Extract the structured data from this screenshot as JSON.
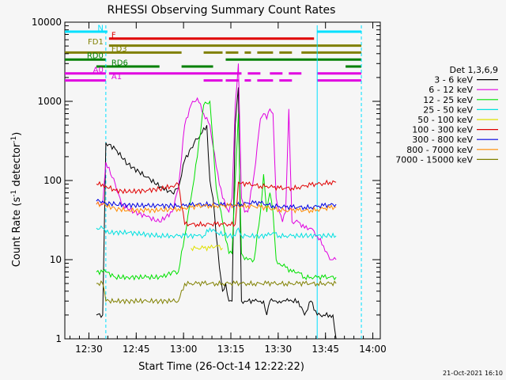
{
  "chart_data": {
    "type": "line",
    "title": "RHESSI Observing Summary Count Rates",
    "xlabel": "Start Time (26-Oct-14 12:22:22)",
    "ylabel": "Count Rate (s⁻¹ detector⁻¹)",
    "ylabel_parts": {
      "main": "Count Rate (s",
      "sup1": "-1",
      "mid": " detector",
      "sup2": "-1",
      "end": ")"
    },
    "footer_date": "21-Oct-2021 16:10",
    "x_unit": "minutes after 12:22:22",
    "xlim": [
      0,
      100
    ],
    "ylim": [
      1,
      10000
    ],
    "y_scale": "log",
    "x_ticks": [
      {
        "v": 7.63,
        "label": "12:30"
      },
      {
        "v": 22.63,
        "label": "12:45"
      },
      {
        "v": 37.63,
        "label": "13:00"
      },
      {
        "v": 52.63,
        "label": "13:15"
      },
      {
        "v": 67.63,
        "label": "13:30"
      },
      {
        "v": 82.63,
        "label": "13:45"
      },
      {
        "v": 97.63,
        "label": "14:00"
      }
    ],
    "y_ticks": [
      {
        "v": 1,
        "label": "1"
      },
      {
        "v": 10,
        "label": "10"
      },
      {
        "v": 100,
        "label": "100"
      },
      {
        "v": 1000,
        "label": "1000"
      },
      {
        "v": 10000,
        "label": "10000"
      }
    ],
    "legend": {
      "title": "Det 1,3,6,9",
      "position": "right"
    },
    "series": [
      {
        "name": "3 - 6 keV",
        "color": "#000000",
        "x": [
          10,
          12,
          13,
          16,
          20,
          26,
          31,
          34,
          36,
          38,
          41,
          43,
          45,
          46,
          47,
          48,
          49,
          50,
          51,
          52,
          53,
          54,
          55,
          56,
          57,
          58,
          60,
          61,
          62,
          63,
          64,
          65,
          66,
          67,
          68,
          69,
          70,
          71,
          72,
          74,
          76,
          78,
          80,
          82,
          84,
          85,
          86
        ],
        "y": [
          2,
          2,
          300,
          250,
          160,
          110,
          80,
          70,
          80,
          180,
          300,
          380,
          500,
          100,
          60,
          20,
          8,
          4,
          5,
          3,
          3,
          500,
          1500,
          3,
          3,
          3,
          3,
          3,
          3,
          3,
          2,
          3,
          3,
          3,
          3,
          3,
          3,
          3,
          3,
          3,
          2,
          3,
          2,
          2,
          2,
          2,
          1
        ]
      },
      {
        "name": "6 - 12 keV",
        "color": "#e000e0",
        "x": [
          10,
          12,
          13,
          16,
          18,
          22,
          26,
          30,
          34,
          36,
          38,
          40,
          42,
          44,
          46,
          48,
          50,
          52,
          53,
          54,
          55,
          56,
          57,
          58,
          60,
          62,
          63,
          64,
          65,
          66,
          67,
          68,
          69,
          70,
          71,
          72,
          74,
          76,
          78,
          80,
          82,
          84,
          85,
          86
        ],
        "y": [
          50,
          50,
          170,
          90,
          50,
          40,
          35,
          30,
          40,
          80,
          500,
          900,
          1100,
          700,
          500,
          150,
          60,
          40,
          60,
          900,
          3000,
          60,
          40,
          40,
          120,
          600,
          700,
          600,
          800,
          700,
          60,
          40,
          30,
          40,
          800,
          30,
          30,
          25,
          25,
          20,
          15,
          10,
          10,
          10
        ]
      },
      {
        "name": "12 - 25 keV",
        "color": "#00e000",
        "x": [
          10,
          12,
          13,
          16,
          20,
          26,
          31,
          34,
          36,
          38,
          40,
          42,
          44,
          46,
          47,
          48,
          50,
          52,
          53,
          54,
          55,
          56,
          57,
          58,
          60,
          62,
          63,
          64,
          65,
          66,
          67,
          68,
          70,
          72,
          74,
          76,
          78,
          80,
          82,
          84,
          86
        ],
        "y": [
          7,
          7,
          7,
          6,
          6,
          6,
          6,
          7,
          7,
          20,
          60,
          200,
          900,
          1000,
          300,
          80,
          30,
          12,
          12,
          100,
          700,
          12,
          10,
          10,
          10,
          40,
          120,
          40,
          70,
          40,
          10,
          9,
          8,
          7,
          7,
          6,
          6,
          6,
          6,
          6,
          6
        ]
      },
      {
        "name": "25 - 50 keV",
        "color": "#00e0e0",
        "x": [
          10,
          12,
          13,
          20,
          30,
          34,
          36,
          38,
          42,
          44,
          46,
          48,
          52,
          54,
          55,
          56,
          58,
          62,
          64,
          66,
          68,
          70,
          72,
          76,
          80,
          84,
          86
        ],
        "y": [
          25,
          25,
          22,
          22,
          20,
          20,
          20,
          20,
          20,
          20,
          25,
          22,
          20,
          20,
          25,
          20,
          20,
          20,
          20,
          22,
          20,
          20,
          20,
          20,
          20,
          20,
          20
        ]
      },
      {
        "name": "50 - 100 keV",
        "color": "#e0e000",
        "x": [
          40,
          42,
          44,
          46,
          48,
          50
        ],
        "y": [
          14,
          14,
          14,
          14,
          15,
          14
        ]
      },
      {
        "name": "100 - 300 keV",
        "color": "#e00000",
        "x": [
          10,
          12,
          13,
          16,
          20,
          26,
          30,
          34,
          36,
          38,
          40,
          42,
          44,
          46,
          48,
          50,
          52,
          54,
          55,
          56,
          58,
          60,
          62,
          64,
          66,
          68,
          70,
          72,
          74,
          76,
          78,
          80,
          82,
          84,
          86
        ],
        "y": [
          90,
          90,
          85,
          75,
          72,
          75,
          78,
          85,
          90,
          28,
          28,
          28,
          28,
          28,
          28,
          28,
          28,
          28,
          95,
          92,
          90,
          88,
          85,
          85,
          82,
          80,
          80,
          80,
          82,
          85,
          88,
          90,
          92,
          95,
          95
        ]
      },
      {
        "name": "300 - 800 keV",
        "color": "#0000e0",
        "x": [
          10,
          12,
          13,
          16,
          20,
          26,
          30,
          34,
          36,
          38,
          40,
          42,
          44,
          46,
          48,
          50,
          52,
          54,
          56,
          58,
          60,
          62,
          64,
          66,
          68,
          70,
          72,
          74,
          76,
          78,
          80,
          82,
          84,
          86
        ],
        "y": [
          55,
          55,
          52,
          50,
          49,
          48,
          48,
          48,
          48,
          48,
          49,
          50,
          50,
          50,
          50,
          49,
          49,
          49,
          50,
          52,
          52,
          52,
          50,
          48,
          47,
          46,
          46,
          46,
          46,
          46,
          47,
          48,
          49,
          50
        ]
      },
      {
        "name": "800 - 7000 keV",
        "color": "#ff8c00",
        "x": [
          10,
          12,
          13,
          16,
          20,
          26,
          30,
          34,
          36,
          38,
          40,
          42,
          44,
          46,
          48,
          50,
          52,
          54,
          56,
          58,
          60,
          62,
          64,
          66,
          68,
          70,
          72,
          74,
          76,
          78,
          80,
          82,
          84,
          86
        ],
        "y": [
          50,
          50,
          48,
          44,
          42,
          42,
          42,
          43,
          44,
          45,
          46,
          47,
          48,
          48,
          48,
          48,
          48,
          48,
          48,
          48,
          47,
          46,
          45,
          44,
          43,
          42,
          42,
          42,
          42,
          42,
          43,
          44,
          45,
          46
        ]
      },
      {
        "name": "7000 - 15000 keV",
        "color": "#808000",
        "x": [
          10,
          12,
          13,
          16,
          20,
          26,
          30,
          34,
          36,
          38,
          40,
          42,
          44,
          46,
          48,
          50,
          52,
          54,
          56,
          58,
          60,
          62,
          64,
          66,
          68,
          70,
          72,
          74,
          76,
          78,
          80,
          82,
          84,
          86
        ],
        "y": [
          5,
          5,
          3,
          3,
          3,
          3,
          3,
          3,
          3,
          5,
          5,
          5,
          5,
          5,
          5,
          5,
          5,
          5,
          5,
          5,
          5,
          5,
          5,
          5,
          5,
          5,
          5,
          5,
          5,
          5,
          5,
          5,
          5,
          5
        ]
      }
    ],
    "flag_bars": [
      {
        "label": "N",
        "color": "#00e0ff",
        "segments": [
          [
            0,
            13.5
          ],
          [
            80,
            94
          ]
        ]
      },
      {
        "label": "F",
        "color": "#e00000",
        "segments": [
          [
            14,
            79
          ]
        ]
      },
      {
        "label": "FD1",
        "color": "#808000",
        "segments": [
          [
            14,
            94
          ]
        ]
      },
      {
        "label": "FD3",
        "color": "#808000",
        "segments": [
          [
            0,
            37
          ],
          [
            44,
            50
          ],
          [
            51,
            55
          ],
          [
            57,
            59
          ],
          [
            61,
            66
          ],
          [
            68,
            72
          ],
          [
            75,
            94
          ]
        ]
      },
      {
        "label": "RD0",
        "color": "#008000",
        "segments": [
          [
            0,
            13
          ],
          [
            51,
            94
          ]
        ]
      },
      {
        "label": "RD6",
        "color": "#008000",
        "segments": [
          [
            10,
            30
          ],
          [
            37,
            47
          ],
          [
            89,
            94
          ]
        ]
      },
      {
        "label": "A0",
        "color": "#e000e0",
        "segments": [
          [
            0,
            13
          ],
          [
            14,
            56
          ],
          [
            58,
            62
          ],
          [
            65,
            69
          ],
          [
            71,
            75
          ],
          [
            80,
            94
          ]
        ]
      },
      {
        "label": "A1",
        "color": "#e000e0",
        "segments": [
          [
            0,
            13
          ],
          [
            44,
            50
          ],
          [
            51,
            55
          ],
          [
            57,
            59
          ],
          [
            61,
            66
          ],
          [
            68,
            72
          ],
          [
            80,
            94
          ]
        ]
      }
    ],
    "vertical_markers": [
      {
        "x": 13,
        "style": "dashed",
        "color": "#00e0ff"
      },
      {
        "x": 80,
        "style": "solid",
        "color": "#00e0ff"
      },
      {
        "x": 94,
        "style": "dashed",
        "color": "#00e0ff"
      }
    ]
  }
}
